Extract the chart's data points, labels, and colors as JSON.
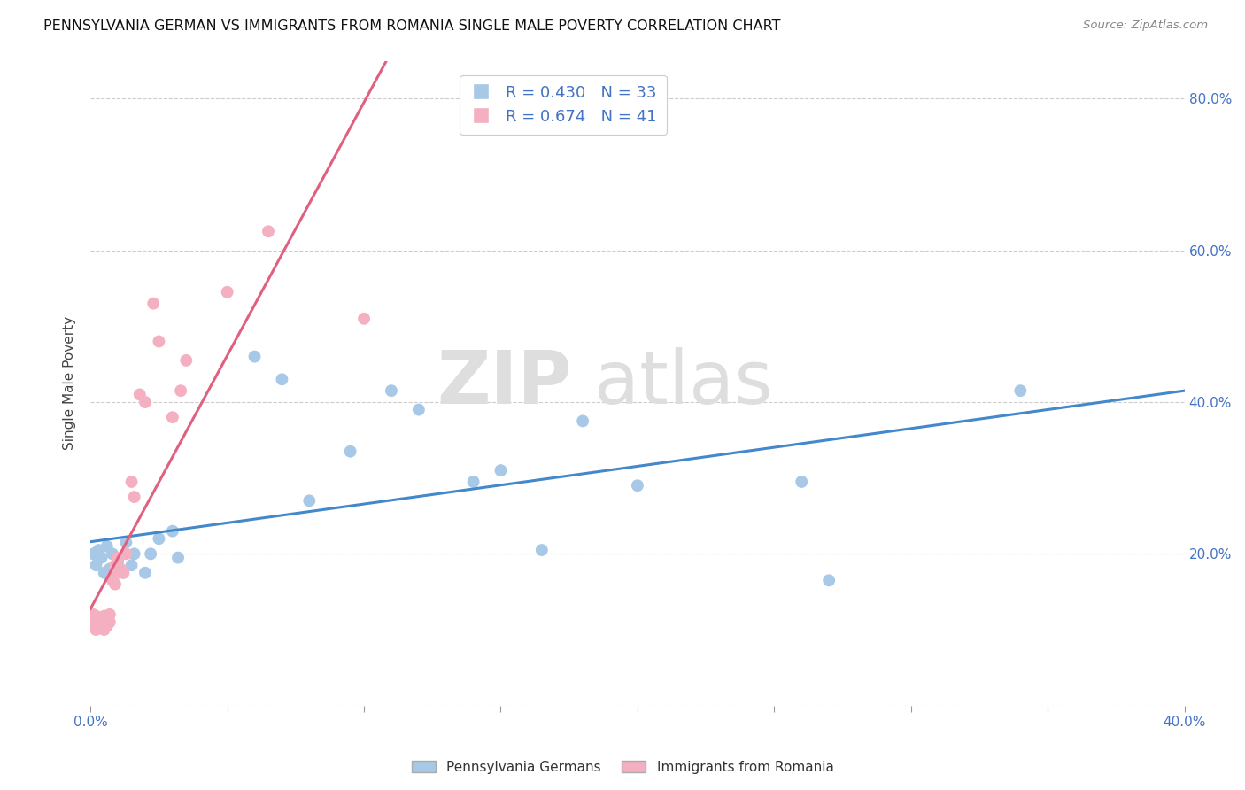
{
  "title": "PENNSYLVANIA GERMAN VS IMMIGRANTS FROM ROMANIA SINGLE MALE POVERTY CORRELATION CHART",
  "source": "Source: ZipAtlas.com",
  "ylabel": "Single Male Poverty",
  "xlim": [
    0.0,
    0.4
  ],
  "ylim": [
    0.0,
    0.85
  ],
  "blue_R": 0.43,
  "blue_N": 33,
  "pink_R": 0.674,
  "pink_N": 41,
  "blue_color": "#a8c8e8",
  "pink_color": "#f4b0c0",
  "blue_line_color": "#4488cc",
  "pink_line_color": "#e06080",
  "legend_label_blue": "Pennsylvania Germans",
  "legend_label_pink": "Immigrants from Romania",
  "watermark_zip": "ZIP",
  "watermark_atlas": "atlas",
  "blue_scatter_x": [
    0.001,
    0.002,
    0.003,
    0.004,
    0.005,
    0.006,
    0.007,
    0.008,
    0.009,
    0.01,
    0.012,
    0.013,
    0.015,
    0.016,
    0.02,
    0.022,
    0.025,
    0.03,
    0.032,
    0.06,
    0.07,
    0.08,
    0.095,
    0.11,
    0.12,
    0.14,
    0.15,
    0.165,
    0.18,
    0.2,
    0.26,
    0.27,
    0.34
  ],
  "blue_scatter_y": [
    0.2,
    0.185,
    0.205,
    0.195,
    0.175,
    0.21,
    0.18,
    0.2,
    0.175,
    0.19,
    0.175,
    0.215,
    0.185,
    0.2,
    0.175,
    0.2,
    0.22,
    0.23,
    0.195,
    0.46,
    0.43,
    0.27,
    0.335,
    0.415,
    0.39,
    0.295,
    0.31,
    0.205,
    0.375,
    0.29,
    0.295,
    0.165,
    0.415
  ],
  "pink_scatter_x": [
    0.001,
    0.001,
    0.001,
    0.001,
    0.001,
    0.002,
    0.002,
    0.002,
    0.002,
    0.003,
    0.003,
    0.003,
    0.004,
    0.004,
    0.005,
    0.005,
    0.006,
    0.006,
    0.007,
    0.007,
    0.008,
    0.008,
    0.009,
    0.009,
    0.01,
    0.01,
    0.011,
    0.012,
    0.013,
    0.015,
    0.016,
    0.018,
    0.02,
    0.023,
    0.025,
    0.03,
    0.033,
    0.035,
    0.05,
    0.065,
    0.1
  ],
  "pink_scatter_y": [
    0.105,
    0.11,
    0.115,
    0.12,
    0.108,
    0.1,
    0.118,
    0.112,
    0.107,
    0.105,
    0.115,
    0.11,
    0.108,
    0.115,
    0.1,
    0.118,
    0.105,
    0.118,
    0.11,
    0.12,
    0.165,
    0.17,
    0.16,
    0.185,
    0.175,
    0.195,
    0.18,
    0.175,
    0.2,
    0.295,
    0.275,
    0.41,
    0.4,
    0.53,
    0.48,
    0.38,
    0.415,
    0.455,
    0.545,
    0.625,
    0.51
  ]
}
